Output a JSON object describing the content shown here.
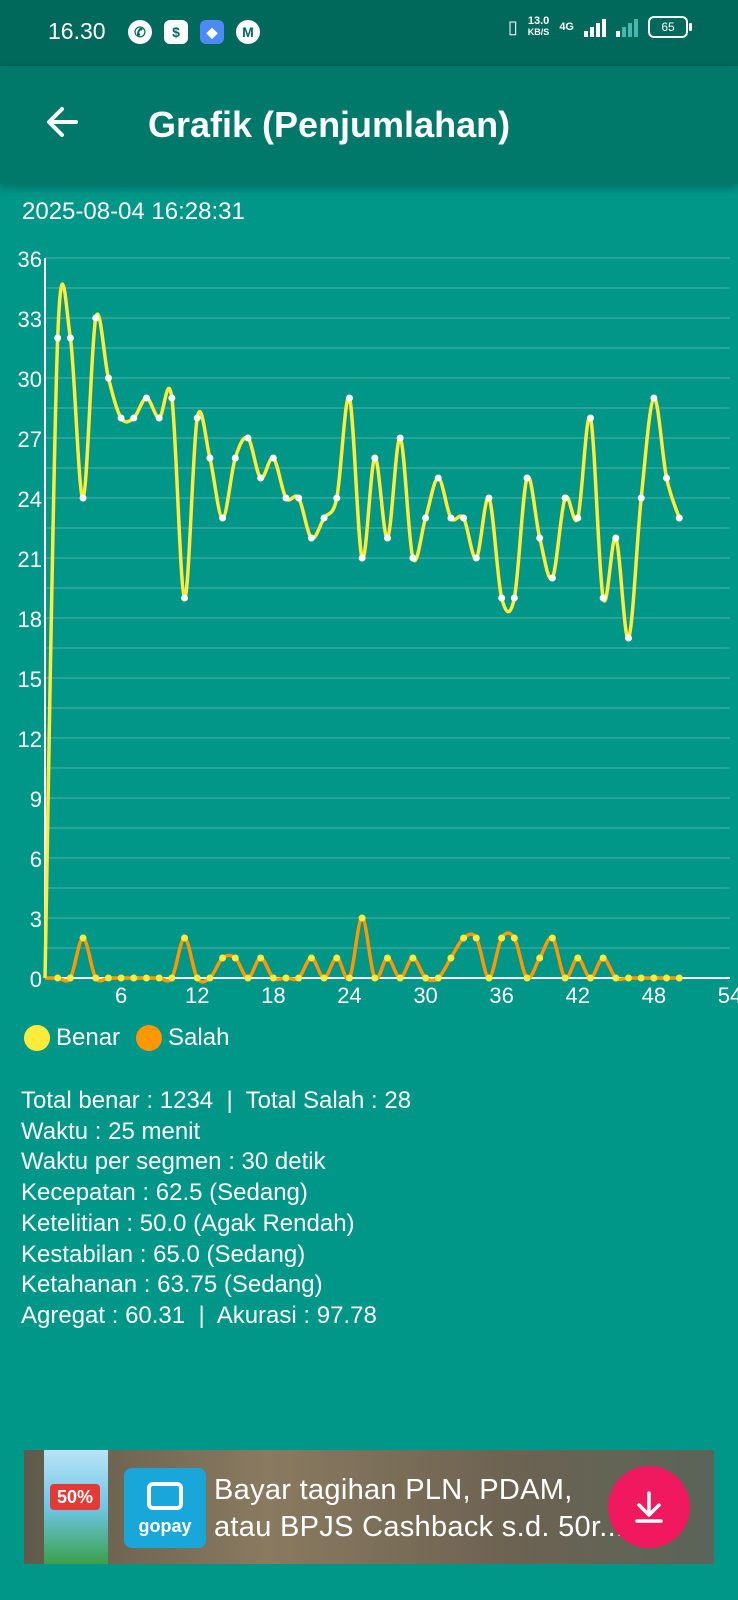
{
  "status_bar": {
    "time": "16.30",
    "net_speed_value": "13.0",
    "net_speed_unit": "KB/S",
    "network": "4G",
    "battery": "65",
    "app_icons": [
      "whatsapp-icon",
      "shopping-bag-icon",
      "blue-app-icon",
      "m-app-icon"
    ]
  },
  "app_bar": {
    "title": "Grafik (Penjumlahan)",
    "back_icon": "arrow-left-icon"
  },
  "timestamp": "2025-08-04 16:28:31",
  "chart_data": {
    "type": "line",
    "x": [
      0,
      1,
      2,
      3,
      4,
      5,
      6,
      7,
      8,
      9,
      10,
      11,
      12,
      13,
      14,
      15,
      16,
      17,
      18,
      19,
      20,
      21,
      22,
      23,
      24,
      25,
      26,
      27,
      28,
      29,
      30,
      31,
      32,
      33,
      34,
      35,
      36,
      37,
      38,
      39,
      40,
      41,
      42,
      43,
      44,
      45,
      46,
      47,
      48,
      49,
      50
    ],
    "xlim": [
      0,
      54
    ],
    "ylim": [
      0,
      36
    ],
    "x_ticks": [
      "6",
      "12",
      "18",
      "24",
      "30",
      "36",
      "42",
      "48",
      "54"
    ],
    "y_ticks": [
      "0",
      "3",
      "6",
      "9",
      "12",
      "15",
      "18",
      "21",
      "24",
      "27",
      "30",
      "33",
      "36"
    ],
    "grid": "horizontal",
    "series": [
      {
        "name": "Benar",
        "color": "#FFEB3B",
        "values": [
          0,
          32,
          32,
          24,
          33,
          30,
          28,
          28,
          29,
          28,
          29,
          19,
          28,
          26,
          23,
          26,
          27,
          25,
          26,
          24,
          24,
          22,
          23,
          24,
          29,
          21,
          26,
          22,
          27,
          21,
          23,
          25,
          23,
          23,
          21,
          24,
          19,
          19,
          25,
          22,
          20,
          24,
          23,
          28,
          19,
          22,
          17,
          24,
          29,
          25,
          23
        ]
      },
      {
        "name": "Salah",
        "color": "#FF9800",
        "values": [
          0,
          0,
          0,
          2,
          0,
          0,
          0,
          0,
          0,
          0,
          0,
          2,
          0,
          0,
          1,
          1,
          0,
          1,
          0,
          0,
          0,
          1,
          0,
          1,
          0,
          3,
          0,
          1,
          0,
          1,
          0,
          0,
          1,
          2,
          2,
          0,
          2,
          2,
          0,
          1,
          2,
          0,
          1,
          0,
          1,
          0,
          0,
          0,
          0,
          0,
          0
        ]
      }
    ]
  },
  "legend": {
    "benar": "Benar",
    "salah": "Salah",
    "benar_color": "#FFEB3B",
    "salah_color": "#FF9800"
  },
  "stats": {
    "line1": "Total benar : 1234  |  Total Salah : 28",
    "line2": "Waktu : 25 menit",
    "line3": "Waktu per segmen : 30 detik",
    "line4": "Kecepatan : 62.5 (Sedang)",
    "line5": "Ketelitian : 50.0 (Agak Rendah)",
    "line6": "Kestabilan : 65.0 (Sedang)",
    "line7": "Ketahanan : 63.75 (Sedang)",
    "line8": "Agregat : 60.31  |  Akurasi : 97.78"
  },
  "ad": {
    "brand": "gopay",
    "thumb_badge": "50%",
    "text_line1": "Bayar tagihan PLN, PDAM,",
    "text_line2": "atau BPJS Cashback s.d. 50r...",
    "download_icon": "download-icon"
  },
  "colors": {
    "background": "#009688",
    "app_bar": "#00796B",
    "status_bar": "#00695C",
    "grid": "#4DB6AC"
  }
}
